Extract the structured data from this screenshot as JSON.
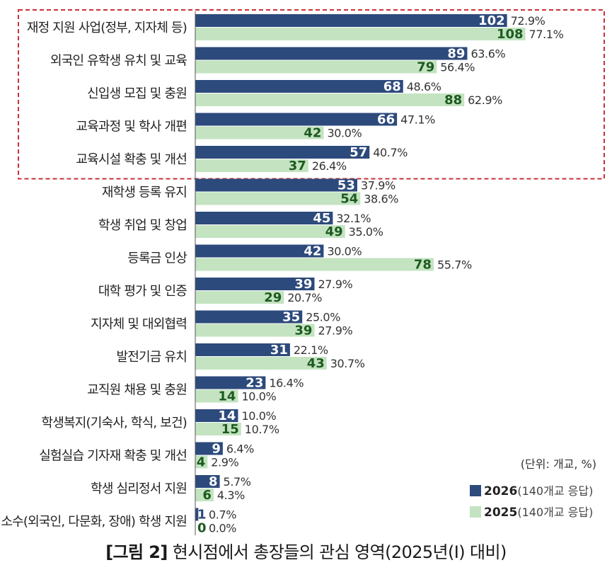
{
  "chart_data": {
    "type": "bar",
    "orientation": "horizontal",
    "categories": [
      "재정 지원 사업(정부, 지자체 등)",
      "외국인 유학생 유치 및 교육",
      "신입생 모집 및 충원",
      "교육과정 및 학사 개편",
      "교육시설 확충 및 개선",
      "재학생 등록 유지",
      "학생 취업 및 창업",
      "등록금 인상",
      "대학 평가 및 인증",
      "지자체 및 대외협력",
      "발전기금 유치",
      "교직원 채용 및 충원",
      "학생복지(기숙사, 학식, 보건)",
      "실험실습 기자재 확충 및 개선",
      "학생 심리정서 지원",
      "소수(외국인, 다문화, 장애) 학생 지원"
    ],
    "series": [
      {
        "name": "2026",
        "name_note": "(140개교 응답)",
        "color": "#2d4a7c",
        "values": [
          102,
          89,
          68,
          66,
          57,
          53,
          45,
          42,
          39,
          35,
          31,
          23,
          14,
          9,
          8,
          1
        ],
        "percents": [
          "72.9%",
          "63.6%",
          "48.6%",
          "47.1%",
          "40.7%",
          "37.9%",
          "32.1%",
          "30.0%",
          "27.9%",
          "25.0%",
          "22.1%",
          "16.4%",
          "10.0%",
          "6.4%",
          "5.7%",
          "0.7%"
        ]
      },
      {
        "name": "2025",
        "name_note": "(140개교 응답)",
        "color": "#c3e3c1",
        "value_label_color": "#1d5a1f",
        "values": [
          108,
          79,
          88,
          42,
          37,
          54,
          49,
          78,
          29,
          39,
          43,
          14,
          15,
          4,
          6,
          0
        ],
        "percents": [
          "77.1%",
          "56.4%",
          "62.9%",
          "30.0%",
          "26.4%",
          "38.6%",
          "35.0%",
          "55.7%",
          "20.7%",
          "27.9%",
          "30.7%",
          "10.0%",
          "10.7%",
          "2.9%",
          "4.3%",
          "0.0%"
        ]
      }
    ],
    "xlim": [
      0,
      140
    ],
    "unit_note": "(단위: 개교, %)",
    "highlight": {
      "first_index": 0,
      "last_index": 4,
      "style": "dashed",
      "color": "#c8323a"
    },
    "legend_position": "bottom-right",
    "grid": false
  },
  "caption": {
    "tag": "[그림 2]",
    "text": "현시점에서 총장들의 관심 영역(2025년(Ⅰ) 대비)"
  }
}
